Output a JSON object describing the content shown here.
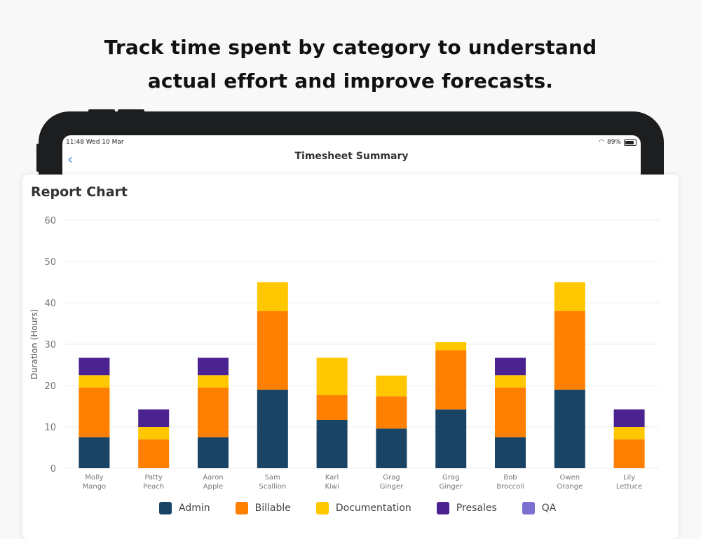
{
  "headline": {
    "line1": "Track time spent by category to understand",
    "line2": "actual effort and improve forecasts."
  },
  "status_bar": {
    "time": "11:48  Wed 10 Mar",
    "battery": "89%"
  },
  "nav": {
    "title": "Timesheet Summary"
  },
  "card": {
    "title": "Report Chart"
  },
  "chart_data": {
    "type": "bar",
    "stacked": true,
    "ylabel": "Duration (Hours)",
    "ylim": [
      0,
      60
    ],
    "yticks": [
      0,
      10,
      20,
      30,
      40,
      50,
      60
    ],
    "grid": true,
    "legend_position": "bottom",
    "categories": [
      [
        "Molly",
        "Mango"
      ],
      [
        "Patty",
        "Peach"
      ],
      [
        "Aaron",
        "Apple"
      ],
      [
        "Sam",
        "Scallion"
      ],
      [
        "Karl",
        "Kiwi"
      ],
      [
        "Grag",
        "Ginger"
      ],
      [
        "Grag",
        "Ginger"
      ],
      [
        "Bob",
        "Broccoli"
      ],
      [
        "Owen",
        "Orange"
      ],
      [
        "Lily",
        "Lettuce"
      ]
    ],
    "series": [
      {
        "name": "Admin",
        "color": "#1a4466",
        "values": [
          7.5,
          0,
          7.5,
          19,
          11.7,
          9.6,
          14.2,
          7.5,
          19,
          0
        ]
      },
      {
        "name": "Billable",
        "color": "#ff8000",
        "values": [
          12,
          7,
          12,
          19,
          6,
          7.8,
          14.3,
          12,
          19,
          7
        ]
      },
      {
        "name": "Documentation",
        "color": "#ffc700",
        "values": [
          3,
          3,
          3,
          7,
          9,
          5,
          2,
          3,
          7,
          3
        ]
      },
      {
        "name": "Presales",
        "color": "#4b2390",
        "values": [
          4.2,
          4.2,
          4.2,
          0,
          0,
          0,
          0,
          4.2,
          0,
          4.2
        ]
      },
      {
        "name": "QA",
        "color": "#7b6fd0",
        "values": [
          0,
          0,
          0,
          0,
          0,
          0,
          0,
          0,
          0,
          0
        ]
      }
    ]
  }
}
